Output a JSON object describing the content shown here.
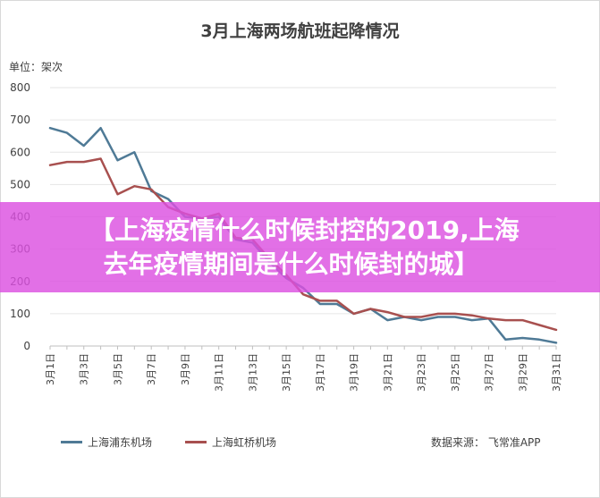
{
  "chart_data": {
    "type": "line",
    "title": "3月上海两场航班起降情况",
    "unit_label": "单位：架次",
    "ylim": [
      0,
      800
    ],
    "yticks": [
      0,
      100,
      200,
      300,
      400,
      500,
      600,
      700,
      800
    ],
    "grid": true,
    "legend_position": "bottom",
    "x": [
      "3月1日",
      "3月2日",
      "3月3日",
      "3月4日",
      "3月5日",
      "3月6日",
      "3月7日",
      "3月8日",
      "3月9日",
      "3月10日",
      "3月11日",
      "3月12日",
      "3月13日",
      "3月14日",
      "3月15日",
      "3月16日",
      "3月17日",
      "3月18日",
      "3月19日",
      "3月20日",
      "3月21日",
      "3月22日",
      "3月23日",
      "3月24日",
      "3月25日",
      "3月26日",
      "3月27日",
      "3月28日",
      "3月29日",
      "3月30日",
      "3月31日"
    ],
    "x_tick_labels": [
      "3月1日",
      "3月3日",
      "3月5日",
      "3月7日",
      "3月9日",
      "3月11日",
      "3月13日",
      "3月15日",
      "3月17日",
      "3月19日",
      "3月21日",
      "3月23日",
      "3月25日",
      "3月27日",
      "3月29日",
      "3月31日"
    ],
    "series": [
      {
        "name": "上海浦东机场",
        "color": "#4f7a96",
        "values": [
          675,
          660,
          620,
          675,
          575,
          600,
          480,
          455,
          400,
          395,
          400,
          330,
          320,
          260,
          210,
          180,
          130,
          130,
          100,
          115,
          80,
          90,
          80,
          90,
          90,
          80,
          85,
          20,
          25,
          20,
          10
        ]
      },
      {
        "name": "上海虹桥机场",
        "color": "#a8504f",
        "values": [
          560,
          570,
          570,
          580,
          470,
          495,
          485,
          430,
          410,
          395,
          410,
          335,
          330,
          270,
          220,
          160,
          140,
          140,
          100,
          115,
          105,
          90,
          90,
          100,
          100,
          95,
          85,
          80,
          80,
          65,
          50
        ]
      }
    ]
  },
  "source": "数据来源： 飞常准APP",
  "banner": {
    "line1": "【上海疫情什么时候封控的2019,上海",
    "line2": "去年疫情期间是什么时候封的城】"
  }
}
